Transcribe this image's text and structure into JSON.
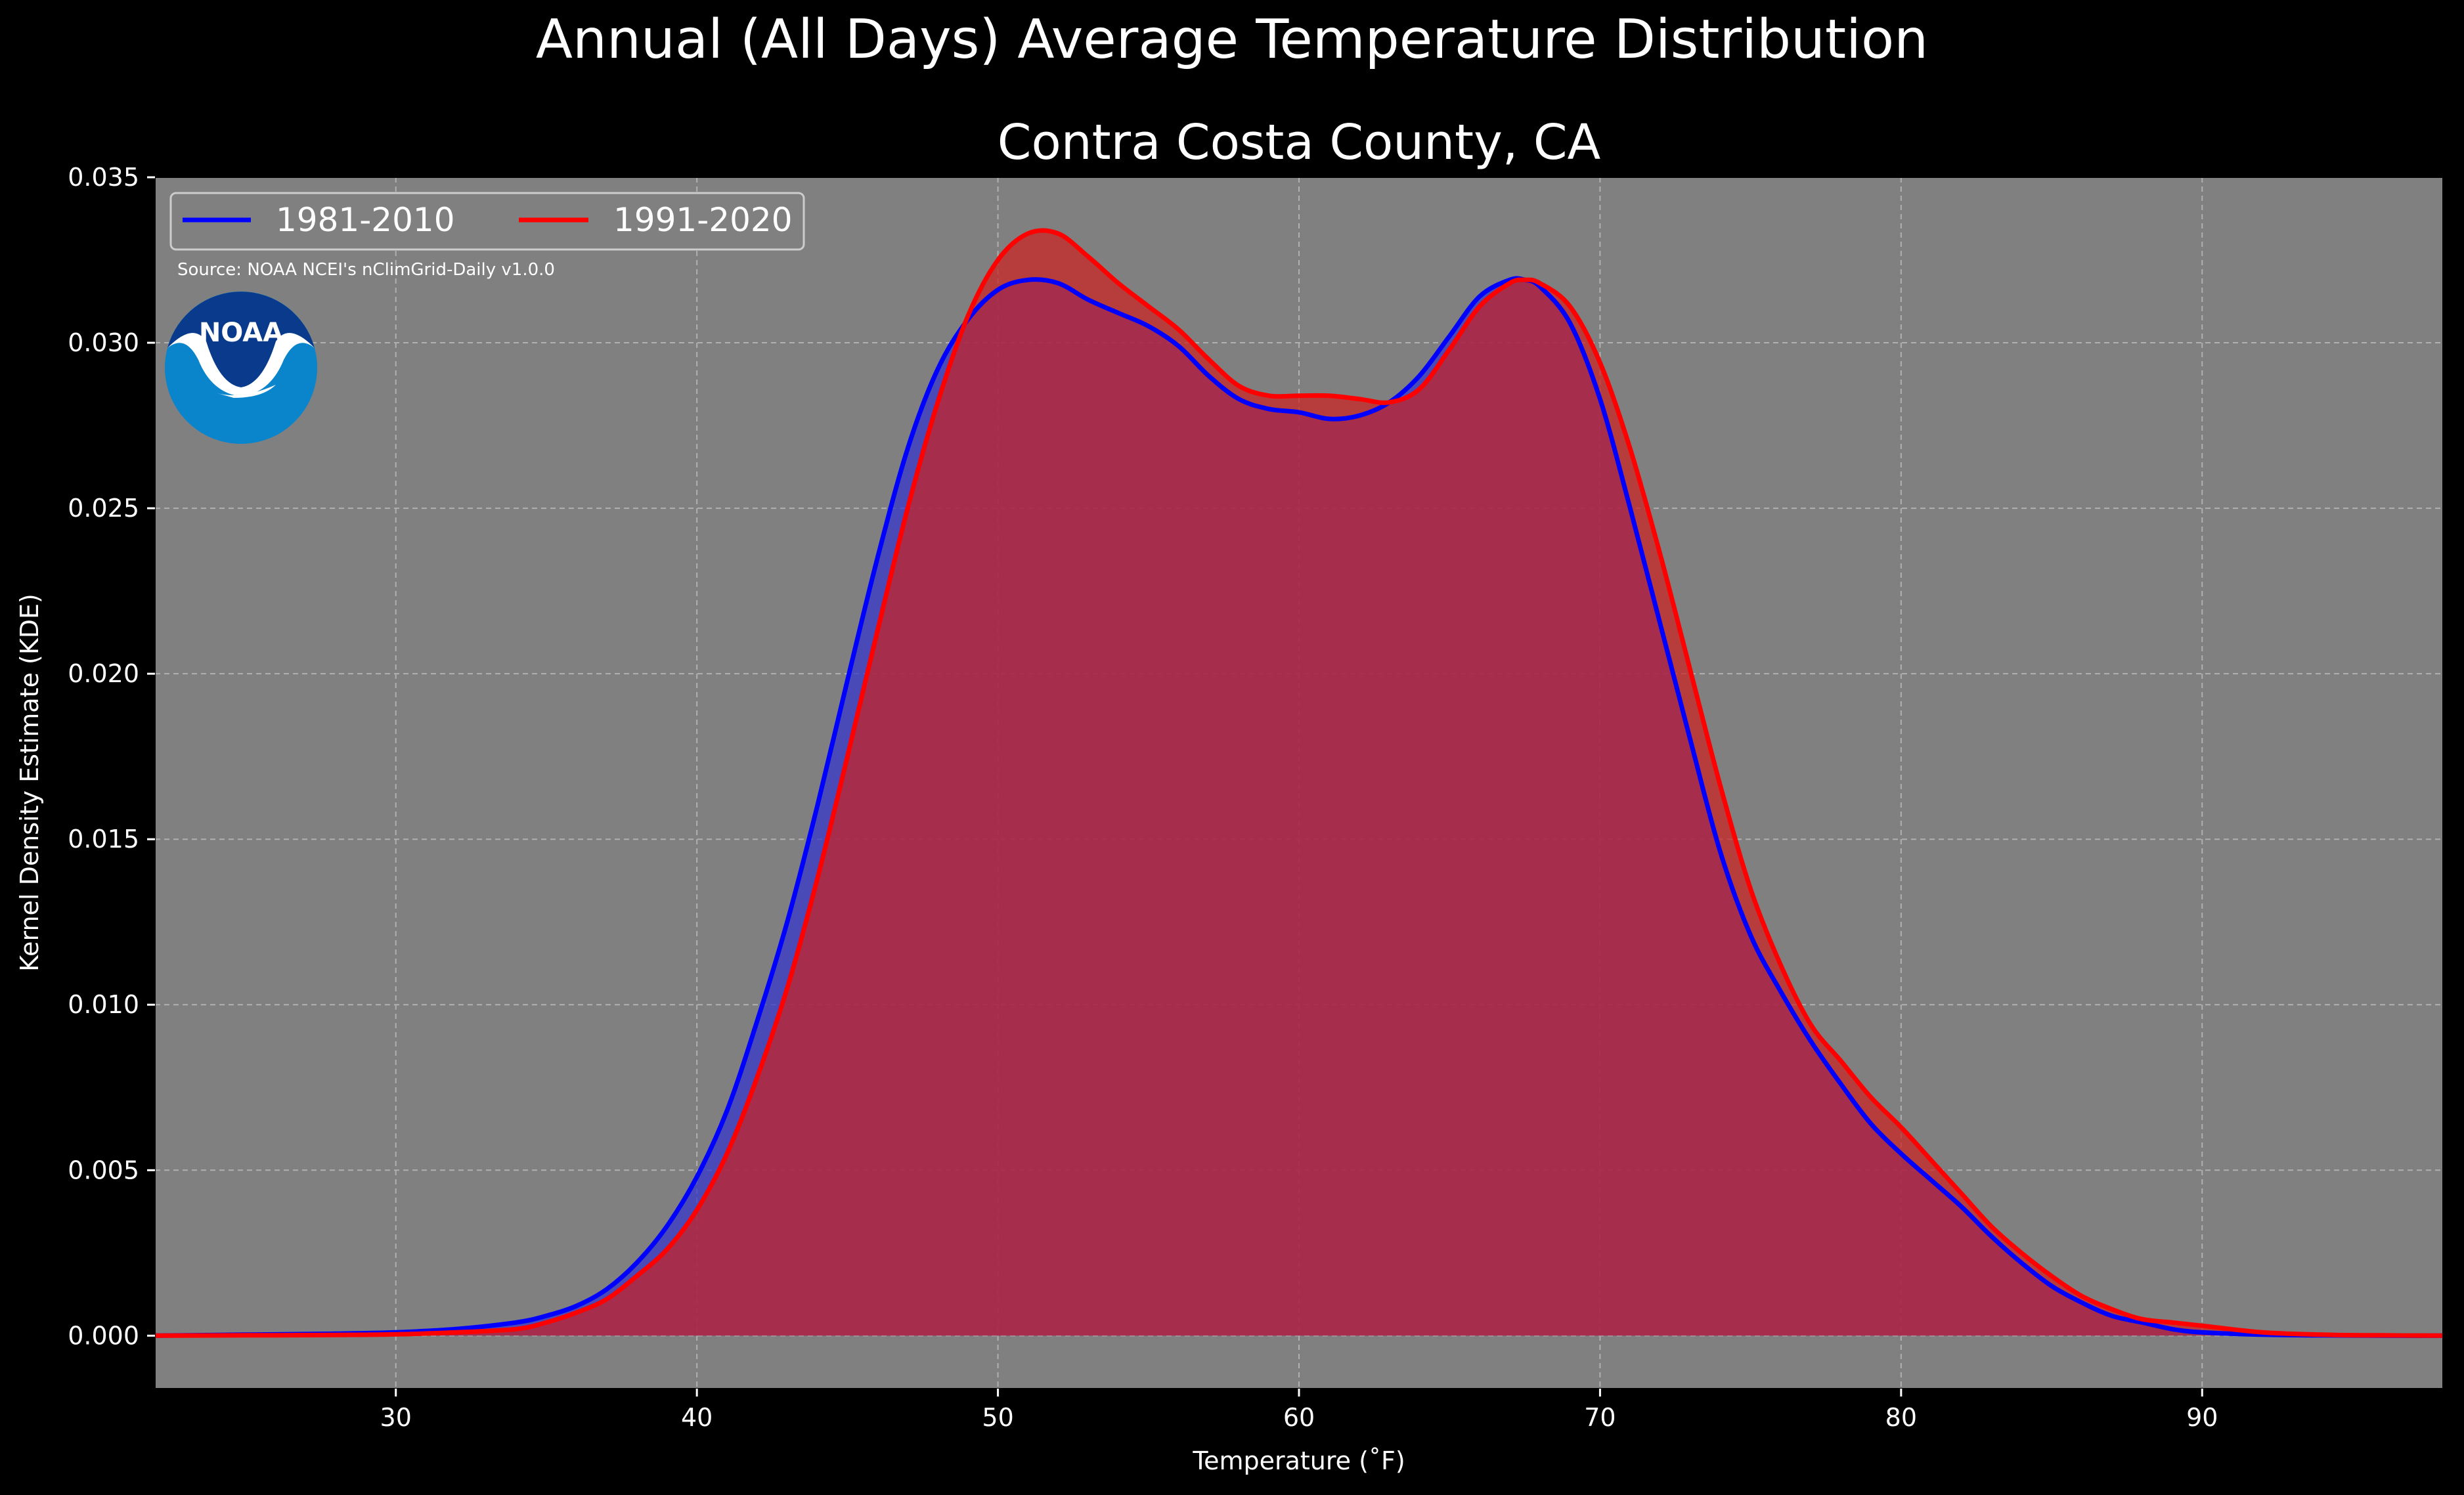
{
  "colors": {
    "background": "#000000",
    "plot_background": "#808080",
    "grid": "#b0b0b0",
    "text": "#ffffff"
  },
  "logo": {
    "text": "NOAA",
    "icon": "noaa-logo-icon"
  },
  "chart_data": {
    "type": "area",
    "suptitle": "Annual (All Days) Average Temperature Distribution",
    "title": "Contra Costa County, CA",
    "xlabel": "Temperature ($^\\circ$F)",
    "xlabel_display": "Temperature (˚F)",
    "ylabel": "Kernel Density Estimate (KDE)",
    "xlim": [
      22,
      98
    ],
    "ylim": [
      -0.0016,
      0.035
    ],
    "xticks": [
      30,
      40,
      50,
      60,
      70,
      80,
      90
    ],
    "xtick_labels": [
      "30",
      "40",
      "50",
      "60",
      "70",
      "80",
      "90"
    ],
    "yticks": [
      0.0,
      0.005,
      0.01,
      0.015,
      0.02,
      0.025,
      0.03,
      0.035
    ],
    "ytick_labels": [
      "0.000",
      "0.005",
      "0.010",
      "0.015",
      "0.020",
      "0.025",
      "0.030",
      "0.035"
    ],
    "grid": true,
    "legend": {
      "placement": "top-left",
      "columns": 2
    },
    "source": "Source: NOAA NCEI's nClimGrid-Daily v1.0.0",
    "x": [
      22,
      25,
      28,
      30,
      32,
      34,
      35,
      36,
      37,
      38,
      39,
      40,
      41,
      42,
      43,
      44,
      45,
      46,
      47,
      48,
      49,
      50,
      51,
      52,
      53,
      54,
      55,
      56,
      57,
      58,
      59,
      60,
      61,
      62,
      63,
      64,
      65,
      66,
      67,
      67.5,
      68,
      69,
      70,
      71,
      72,
      73,
      74,
      75,
      76,
      77,
      78,
      79,
      80,
      81,
      82,
      83,
      84,
      85,
      86,
      87,
      88,
      89,
      90,
      92,
      94,
      96,
      98
    ],
    "series": [
      {
        "name": "1981-2010",
        "color": "#0000ff",
        "fill": "#3333cc",
        "values": [
          0.0,
          3e-05,
          6e-05,
          0.0001,
          0.0002,
          0.0004,
          0.0006,
          0.0009,
          0.0014,
          0.0022,
          0.0033,
          0.0048,
          0.0068,
          0.0095,
          0.0125,
          0.016,
          0.0198,
          0.0235,
          0.0268,
          0.0292,
          0.0307,
          0.0316,
          0.0319,
          0.0318,
          0.0313,
          0.0309,
          0.0305,
          0.0299,
          0.029,
          0.0283,
          0.028,
          0.0279,
          0.0277,
          0.0278,
          0.0282,
          0.029,
          0.0302,
          0.0314,
          0.0319,
          0.0319,
          0.0317,
          0.0306,
          0.0283,
          0.025,
          0.0215,
          0.018,
          0.0146,
          0.0121,
          0.0104,
          0.0089,
          0.0076,
          0.0064,
          0.0055,
          0.0047,
          0.0039,
          0.003,
          0.0022,
          0.0015,
          0.001,
          0.0006,
          0.0004,
          0.0002,
          0.0001,
          3e-05,
          1e-05,
          0.0,
          0.0
        ]
      },
      {
        "name": "1991-2020",
        "color": "#ff0000",
        "fill": "#cc2222",
        "values": [
          0.0,
          1e-05,
          2e-05,
          4e-05,
          0.0001,
          0.0002,
          0.0004,
          0.0007,
          0.0011,
          0.0018,
          0.0026,
          0.0038,
          0.0055,
          0.0078,
          0.0105,
          0.0138,
          0.0175,
          0.0213,
          0.025,
          0.0282,
          0.0308,
          0.0325,
          0.0333,
          0.0333,
          0.0326,
          0.0318,
          0.0311,
          0.0304,
          0.0295,
          0.0287,
          0.0284,
          0.0284,
          0.0284,
          0.0283,
          0.0282,
          0.0286,
          0.0298,
          0.0311,
          0.0318,
          0.0319,
          0.0318,
          0.0311,
          0.0294,
          0.0268,
          0.0236,
          0.0201,
          0.0166,
          0.0135,
          0.0112,
          0.0094,
          0.0083,
          0.0072,
          0.0063,
          0.0053,
          0.0043,
          0.0033,
          0.0025,
          0.0018,
          0.0012,
          0.0008,
          0.0005,
          0.0004,
          0.0003,
          0.0001,
          3e-05,
          1e-05,
          0.0
        ]
      }
    ]
  }
}
